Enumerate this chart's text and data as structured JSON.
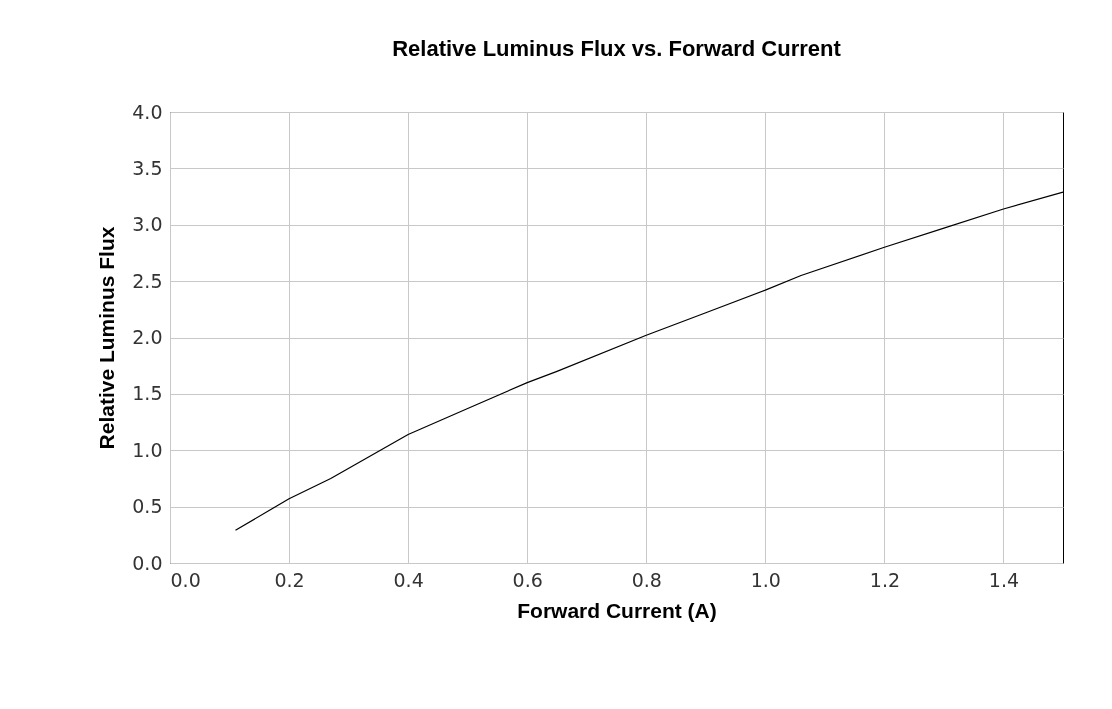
{
  "chart_data": {
    "type": "line",
    "title": "Relative Luminus Flux vs. Forward Current",
    "xlabel": "Forward Current (A)",
    "ylabel": "Relative Luminus Flux",
    "x": [
      0.11,
      0.2,
      0.27,
      0.4,
      0.5,
      0.6,
      0.65,
      0.8,
      0.9,
      1.0,
      1.06,
      1.2,
      1.3,
      1.4,
      1.5
    ],
    "series": [
      {
        "color": "#000000",
        "values": [
          0.29,
          0.57,
          0.75,
          1.14,
          1.37,
          1.6,
          1.7,
          2.02,
          2.22,
          2.42,
          2.55,
          2.8,
          2.97,
          3.14,
          3.29
        ]
      }
    ],
    "xlim": [
      0,
      1.5
    ],
    "xticks": [
      {
        "value": 0,
        "label": "0.0"
      },
      0.2,
      0.4,
      0.6,
      0.8,
      {
        "value": 1,
        "label": "1.0"
      },
      1.2,
      1.4
    ],
    "ylim": [
      0,
      4
    ],
    "yticks": [
      {
        "value": 0,
        "label": "0.0"
      },
      0.5,
      {
        "value": 1,
        "label": "1.0"
      },
      1.5,
      {
        "value": 2,
        "label": "2.0"
      },
      2.5,
      {
        "value": 3,
        "label": "3.0"
      },
      3.5,
      {
        "value": 4,
        "label": "4.0"
      }
    ],
    "grid": true,
    "marker": "none",
    "line_style": "solid"
  }
}
